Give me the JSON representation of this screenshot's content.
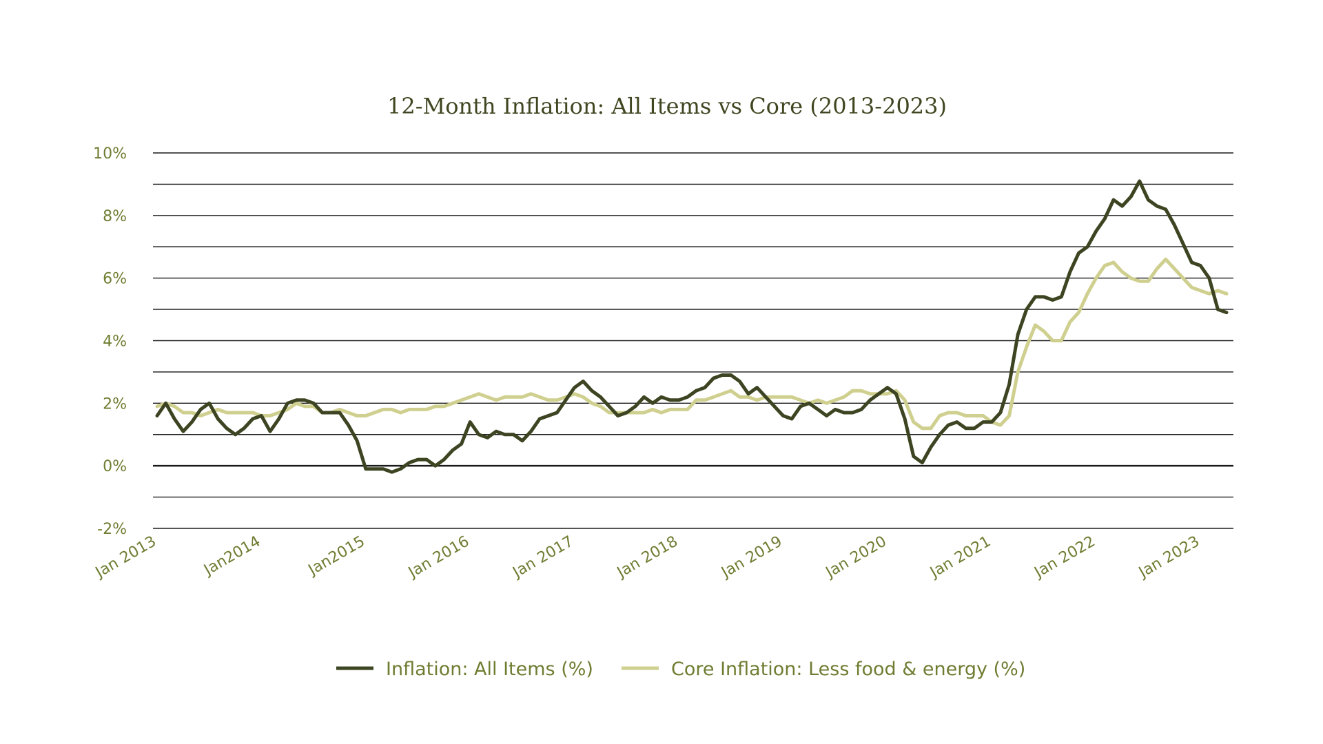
{
  "colors": {
    "all_items": "#3d4422",
    "core": "#cfd08f",
    "axis_label": "#6f7d32",
    "grid": "#1a1a1a",
    "title": "#3f4620"
  },
  "chart_data": {
    "type": "line",
    "title": "12-Month Inflation: All Items vs Core (2013-2023)",
    "xlabel": "",
    "ylabel": "",
    "ylim": [
      -2,
      10
    ],
    "y_ticks": [
      "10%",
      "8%",
      "6%",
      "4%",
      "2%",
      "0%",
      "-2%"
    ],
    "y_tick_values": [
      10,
      8,
      6,
      4,
      2,
      0,
      -2
    ],
    "grid": true,
    "legend_position": "bottom",
    "x_tick_labels": [
      "Jan 2013",
      "Jan2014",
      "Jan2015",
      "Jan 2016",
      "Jan 2017",
      "Jan 2018",
      "Jan 2019",
      "Jan 2020",
      "Jan 2021",
      "Jan 2022",
      "Jan 2023"
    ],
    "x_tick_values": [
      "2013-01",
      "2014-01",
      "2015-01",
      "2016-01",
      "2017-01",
      "2018-01",
      "2019-01",
      "2020-01",
      "2021-01",
      "2022-01",
      "2023-01"
    ],
    "x_start": "2013-01",
    "series": [
      {
        "name": "Inflation: All Items (%)",
        "values": [
          1.6,
          2.0,
          1.5,
          1.1,
          1.4,
          1.8,
          2.0,
          1.5,
          1.2,
          1.0,
          1.2,
          1.5,
          1.6,
          1.1,
          1.5,
          2.0,
          2.1,
          2.1,
          2.0,
          1.7,
          1.7,
          1.7,
          1.3,
          0.8,
          -0.1,
          -0.1,
          -0.1,
          -0.2,
          -0.1,
          0.1,
          0.2,
          0.2,
          0.0,
          0.2,
          0.5,
          0.7,
          1.4,
          1.0,
          0.9,
          1.1,
          1.0,
          1.0,
          0.8,
          1.1,
          1.5,
          1.6,
          1.7,
          2.1,
          2.5,
          2.7,
          2.4,
          2.2,
          1.9,
          1.6,
          1.7,
          1.9,
          2.2,
          2.0,
          2.2,
          2.1,
          2.1,
          2.2,
          2.4,
          2.5,
          2.8,
          2.9,
          2.9,
          2.7,
          2.3,
          2.5,
          2.2,
          1.9,
          1.6,
          1.5,
          1.9,
          2.0,
          1.8,
          1.6,
          1.8,
          1.7,
          1.7,
          1.8,
          2.1,
          2.3,
          2.5,
          2.3,
          1.5,
          0.3,
          0.1,
          0.6,
          1.0,
          1.3,
          1.4,
          1.2,
          1.2,
          1.4,
          1.4,
          1.7,
          2.6,
          4.2,
          5.0,
          5.4,
          5.4,
          5.3,
          5.4,
          6.2,
          6.8,
          7.0,
          7.5,
          7.9,
          8.5,
          8.3,
          8.6,
          9.1,
          8.5,
          8.3,
          8.2,
          7.7,
          7.1,
          6.5,
          6.4,
          6.0,
          5.0,
          4.9
        ],
        "color": "#3d4422"
      },
      {
        "name": "Core Inflation: Less food & energy (%)",
        "values": [
          1.9,
          2.0,
          1.9,
          1.7,
          1.7,
          1.6,
          1.7,
          1.8,
          1.7,
          1.7,
          1.7,
          1.7,
          1.6,
          1.6,
          1.7,
          1.8,
          2.0,
          1.9,
          1.9,
          1.7,
          1.7,
          1.8,
          1.7,
          1.6,
          1.6,
          1.7,
          1.8,
          1.8,
          1.7,
          1.8,
          1.8,
          1.8,
          1.9,
          1.9,
          2.0,
          2.1,
          2.2,
          2.3,
          2.2,
          2.1,
          2.2,
          2.2,
          2.2,
          2.3,
          2.2,
          2.1,
          2.1,
          2.2,
          2.3,
          2.2,
          2.0,
          1.9,
          1.7,
          1.7,
          1.7,
          1.7,
          1.7,
          1.8,
          1.7,
          1.8,
          1.8,
          1.8,
          2.1,
          2.1,
          2.2,
          2.3,
          2.4,
          2.2,
          2.2,
          2.1,
          2.2,
          2.2,
          2.2,
          2.2,
          2.1,
          2.0,
          2.1,
          2.0,
          2.1,
          2.2,
          2.4,
          2.4,
          2.3,
          2.3,
          2.3,
          2.4,
          2.1,
          1.4,
          1.2,
          1.2,
          1.6,
          1.7,
          1.7,
          1.6,
          1.6,
          1.6,
          1.4,
          1.3,
          1.6,
          3.0,
          3.8,
          4.5,
          4.3,
          4.0,
          4.0,
          4.6,
          4.9,
          5.5,
          6.0,
          6.4,
          6.5,
          6.2,
          6.0,
          5.9,
          5.9,
          6.3,
          6.6,
          6.3,
          6.0,
          5.7,
          5.6,
          5.5,
          5.6,
          5.5
        ],
        "color": "#cfd08f"
      }
    ]
  }
}
